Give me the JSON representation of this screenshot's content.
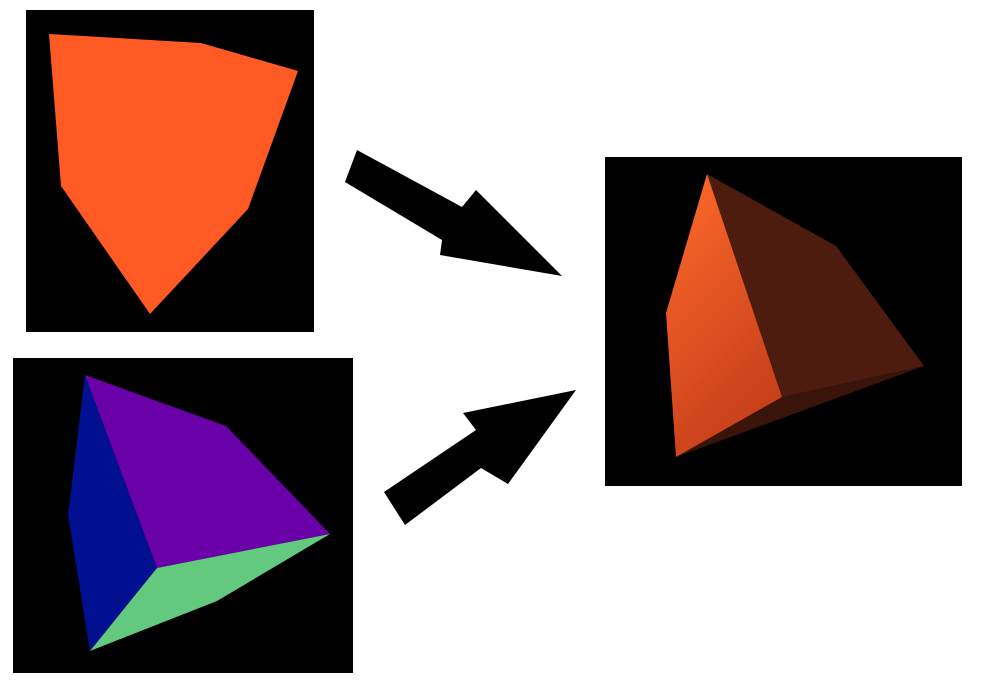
{
  "colors": {
    "background": "#ffffff",
    "panel_background": "#000000",
    "arrow": "#000000",
    "silhouette_face": "#ff5a24",
    "normal_face_blue": "#001090",
    "normal_face_purple": "#6a00a8",
    "normal_face_green": "#62c97e",
    "shaded_face_lit_light": "#ff6a2a",
    "shaded_face_lit_dark": "#c8401a",
    "shaded_face_shadow": "#4e1c0e",
    "shaded_face_bottom": "#3a140a"
  },
  "panels": [
    {
      "id": "silhouette",
      "description_icon": "orange-silhouette-icon"
    },
    {
      "id": "normals",
      "description_icon": "normal-colored-tetrahedron-icon"
    },
    {
      "id": "shaded",
      "description_icon": "shaded-tetrahedron-icon"
    }
  ],
  "arrows": [
    {
      "from": "silhouette",
      "to": "shaded",
      "icon": "arrow-right-down-icon"
    },
    {
      "from": "normals",
      "to": "shaded",
      "icon": "arrow-right-up-icon"
    }
  ]
}
